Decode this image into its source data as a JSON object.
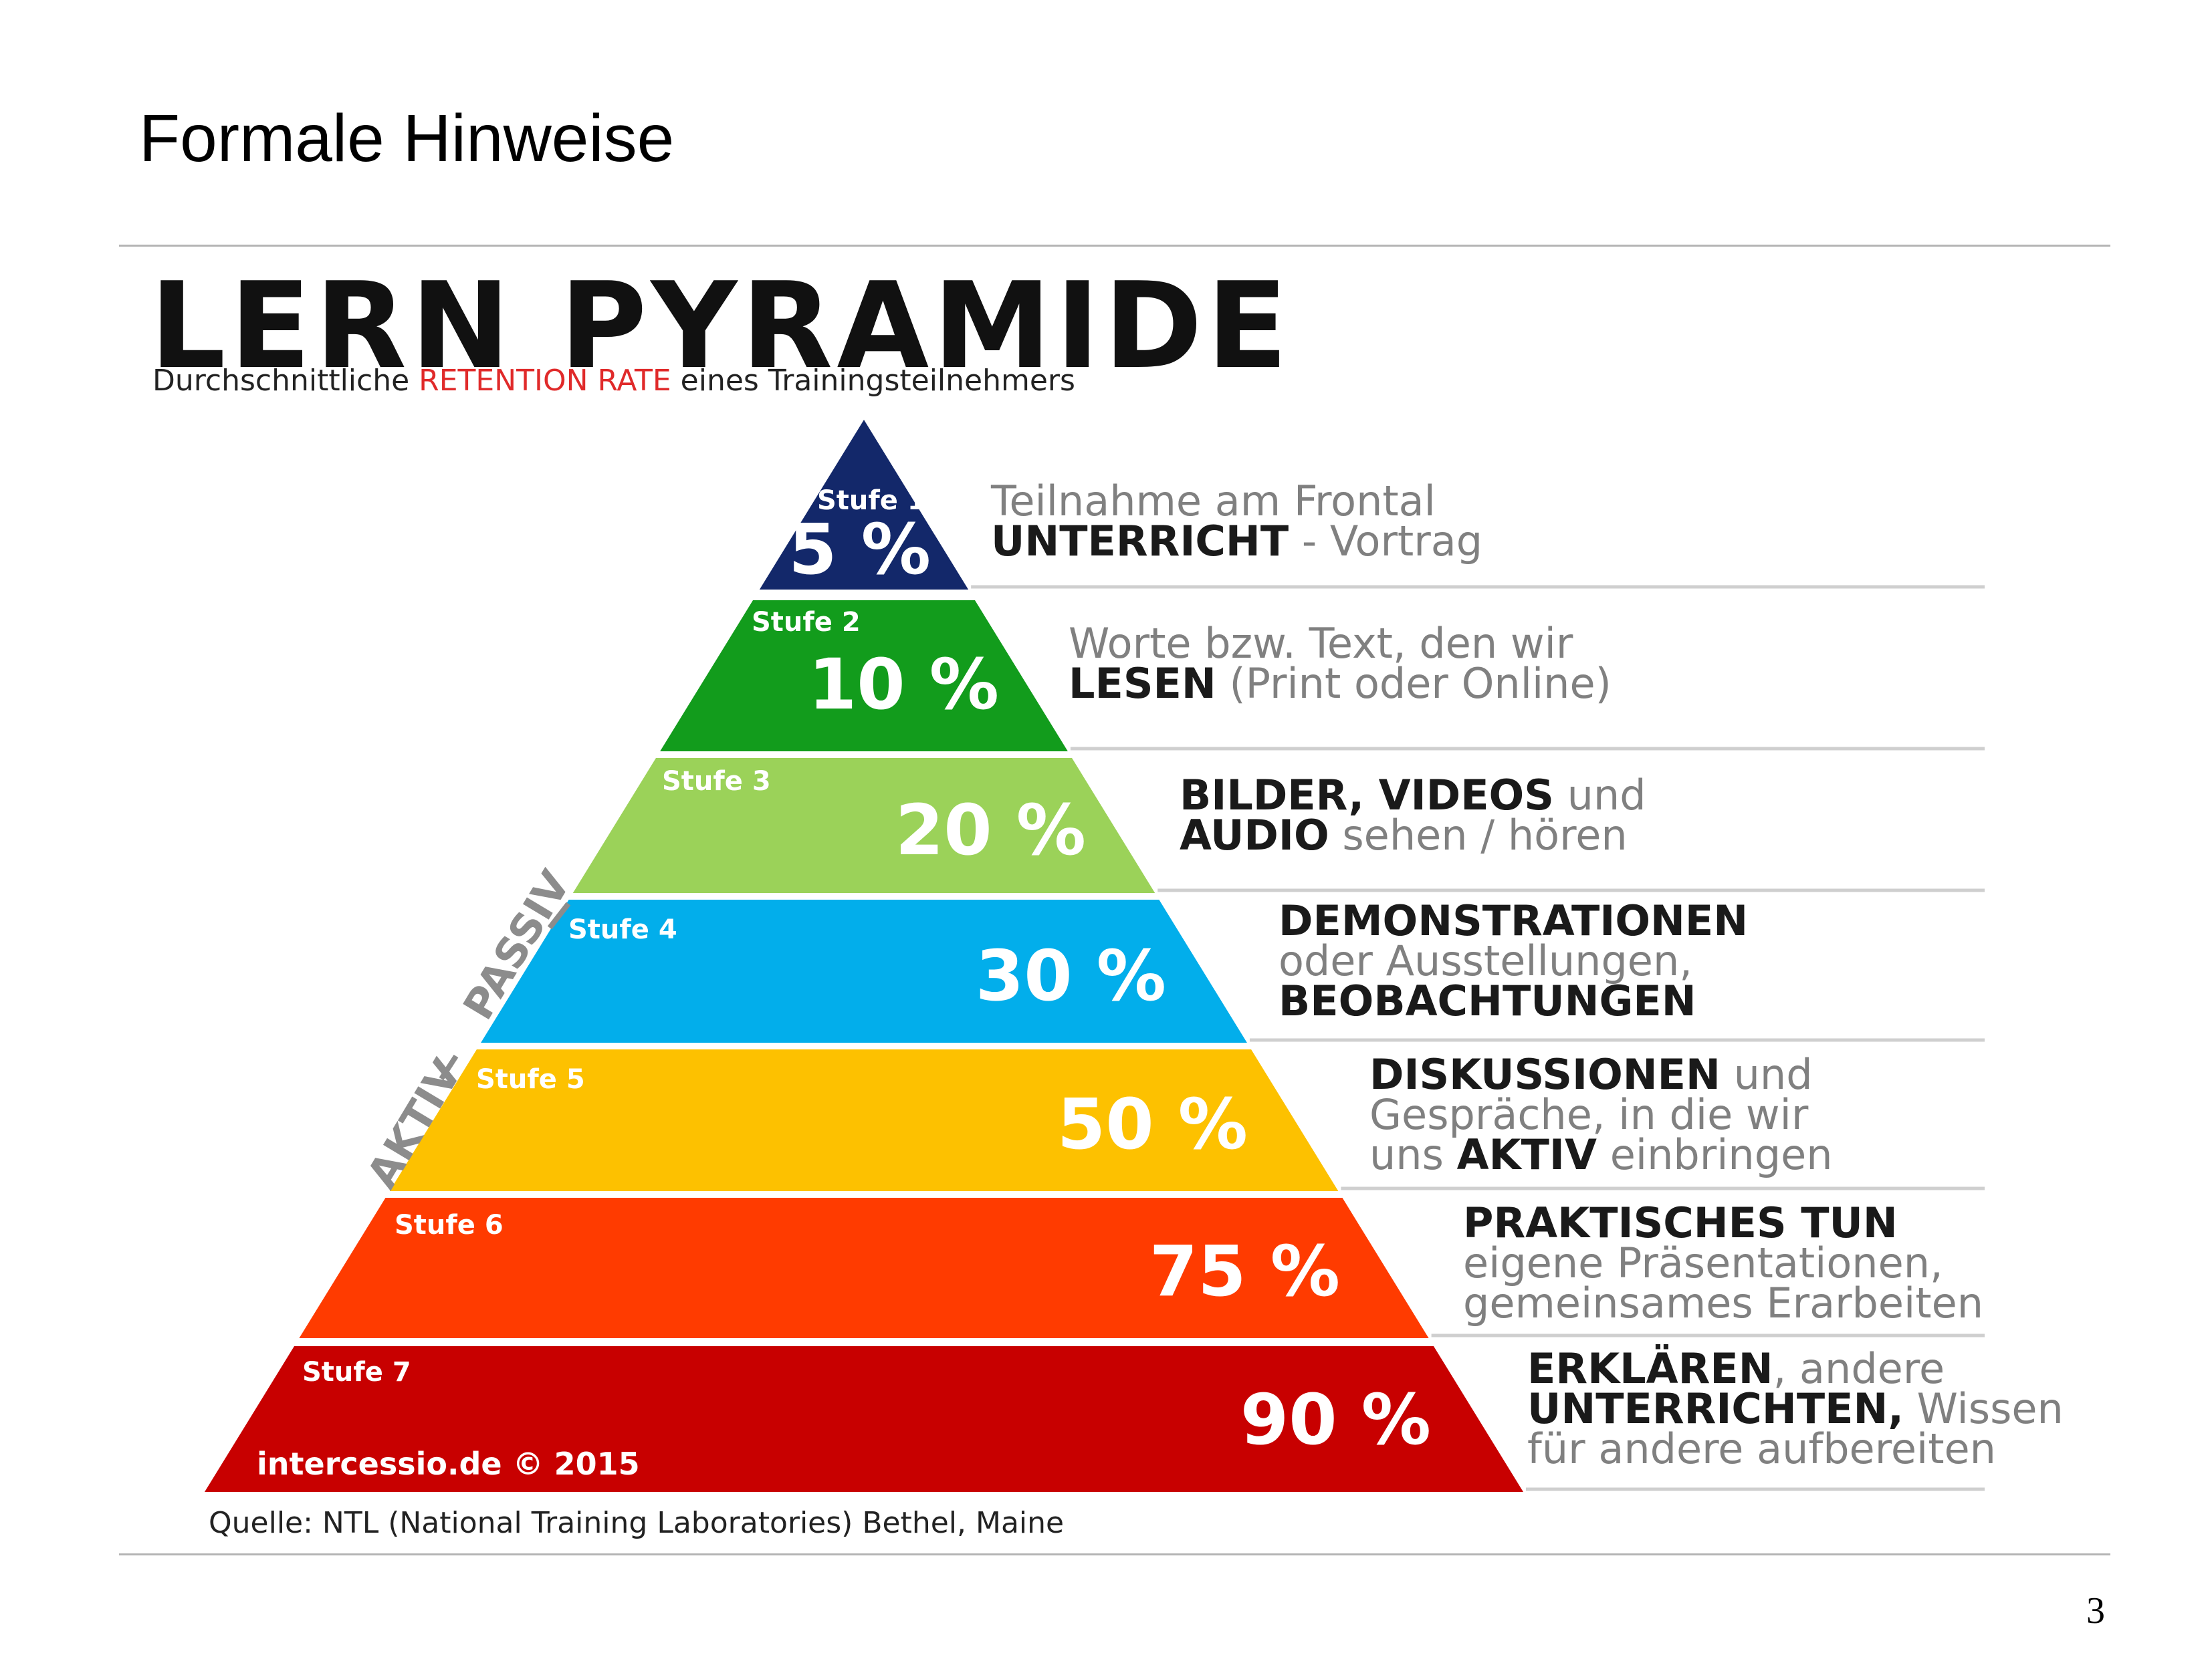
{
  "slide": {
    "title": "Formale Hinweise",
    "page_number": "3"
  },
  "graphic": {
    "title": "LERN PYRAMIDE",
    "subtitle_prefix": "Durchschnittliche ",
    "subtitle_highlight": "RETENTION RATE",
    "subtitle_suffix": " eines Trainingsteilnehmers",
    "passive_label": "PASSIV",
    "active_label": "AKTIV",
    "copyright": "intercessio.de © 2015",
    "source": "Quelle: NTL (National Training Laboratories) Bethel, Maine"
  },
  "tiers": [
    {
      "stage": "Stufe 1",
      "percent": "5 %",
      "color": "#13286a",
      "lines": [
        [
          {
            "t": "Teilnahme am Frontal",
            "b": false
          }
        ],
        [
          {
            "t": "UNTERRICHT",
            "b": true
          },
          {
            "t": " - Vortrag",
            "b": false
          }
        ]
      ]
    },
    {
      "stage": "Stufe 2",
      "percent": "10 %",
      "color": "#129c1c",
      "lines": [
        [
          {
            "t": "Worte bzw. Text, den wir",
            "b": false
          }
        ],
        [
          {
            "t": "LESEN",
            "b": true
          },
          {
            "t": " (Print oder Online)",
            "b": false
          }
        ]
      ]
    },
    {
      "stage": "Stufe 3",
      "percent": "20 %",
      "color": "#9bd259",
      "lines": [
        [
          {
            "t": "BILDER, VIDEOS",
            "b": true
          },
          {
            "t": " und",
            "b": false
          }
        ],
        [
          {
            "t": "AUDIO",
            "b": true
          },
          {
            "t": " sehen / hören",
            "b": false
          }
        ]
      ]
    },
    {
      "stage": "Stufe 4",
      "percent": "30 %",
      "color": "#02aeeb",
      "lines": [
        [
          {
            "t": "DEMONSTRATIONEN",
            "b": true
          }
        ],
        [
          {
            "t": "oder Ausstellungen,",
            "b": false
          }
        ],
        [
          {
            "t": "BEOBACHTUNGEN",
            "b": true
          }
        ]
      ]
    },
    {
      "stage": "Stufe 5",
      "percent": "50 %",
      "color": "#fdc100",
      "lines": [
        [
          {
            "t": "DISKUSSIONEN",
            "b": true
          },
          {
            "t": " und",
            "b": false
          }
        ],
        [
          {
            "t": "Gespräche, in die wir",
            "b": false
          }
        ],
        [
          {
            "t": "uns ",
            "b": false
          },
          {
            "t": "AKTIV",
            "b": true
          },
          {
            "t": " einbringen",
            "b": false
          }
        ]
      ]
    },
    {
      "stage": "Stufe 6",
      "percent": "75 %",
      "color": "#ff3b00",
      "lines": [
        [
          {
            "t": "PRAKTISCHES TUN",
            "b": true
          }
        ],
        [
          {
            "t": "eigene Präsentationen,",
            "b": false
          }
        ],
        [
          {
            "t": "gemeinsames Erarbeiten",
            "b": false
          }
        ]
      ]
    },
    {
      "stage": "Stufe 7",
      "percent": "90 %",
      "color": "#c80000",
      "lines": [
        [
          {
            "t": "ERKLÄREN",
            "b": true
          },
          {
            "t": ", andere",
            "b": false
          }
        ],
        [
          {
            "t": "UNTERRICHTEN,",
            "b": true
          },
          {
            "t": " Wissen",
            "b": false
          }
        ],
        [
          {
            "t": "für andere aufbereiten",
            "b": false
          }
        ]
      ]
    }
  ]
}
